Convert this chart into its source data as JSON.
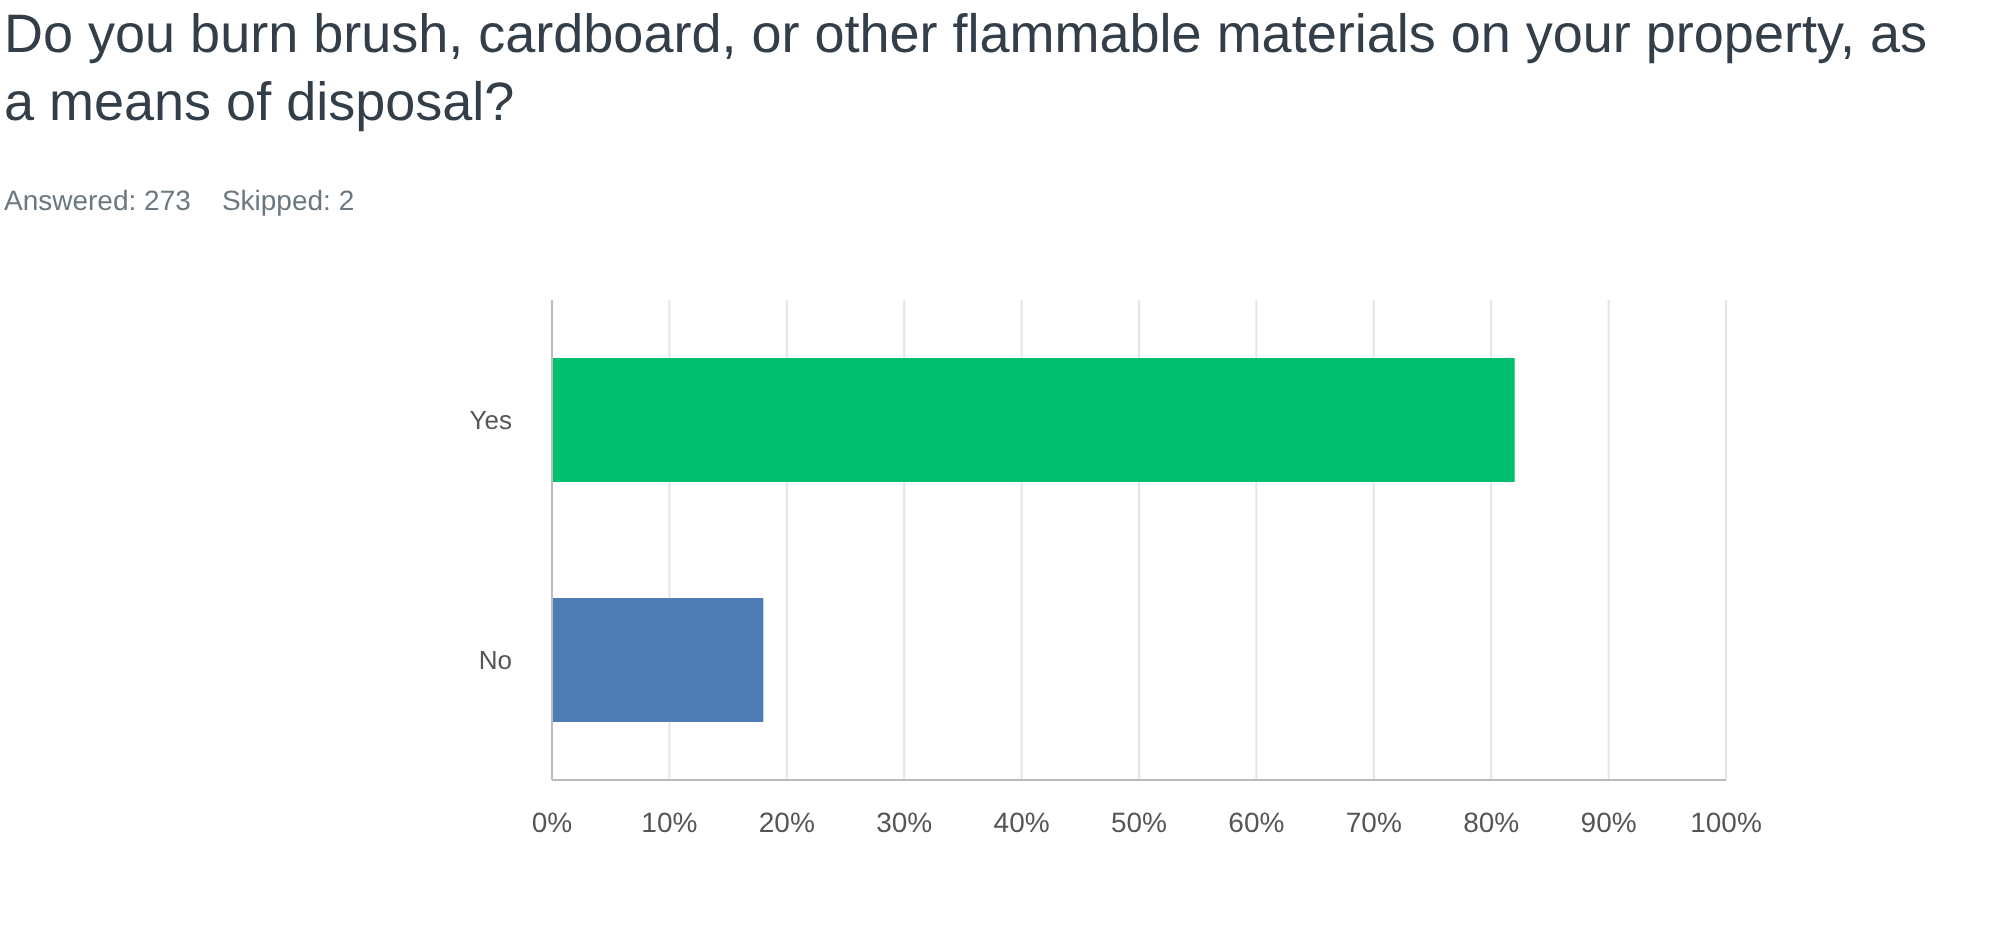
{
  "chart_data": {
    "type": "bar",
    "orientation": "horizontal",
    "title": "Do you burn brush, cardboard, or other flammable materials on your property, as a means of disposal?",
    "subtitle": "Answered: 273    Skipped: 2",
    "categories": [
      "Yes",
      "No"
    ],
    "values": [
      82,
      18
    ],
    "colors": [
      "#00bf6f",
      "#507cb6"
    ],
    "xlim": [
      0,
      100
    ],
    "xticks": [
      {
        "value": 0,
        "label": "0%"
      },
      {
        "value": 10,
        "label": "10%"
      },
      {
        "value": 20,
        "label": "20%"
      },
      {
        "value": 30,
        "label": "30%"
      },
      {
        "value": 40,
        "label": "40%"
      },
      {
        "value": 50,
        "label": "50%"
      },
      {
        "value": 60,
        "label": "60%"
      },
      {
        "value": 70,
        "label": "70%"
      },
      {
        "value": 80,
        "label": "80%"
      },
      {
        "value": 90,
        "label": "90%"
      },
      {
        "value": 100,
        "label": "100%"
      }
    ],
    "grid": "x"
  }
}
